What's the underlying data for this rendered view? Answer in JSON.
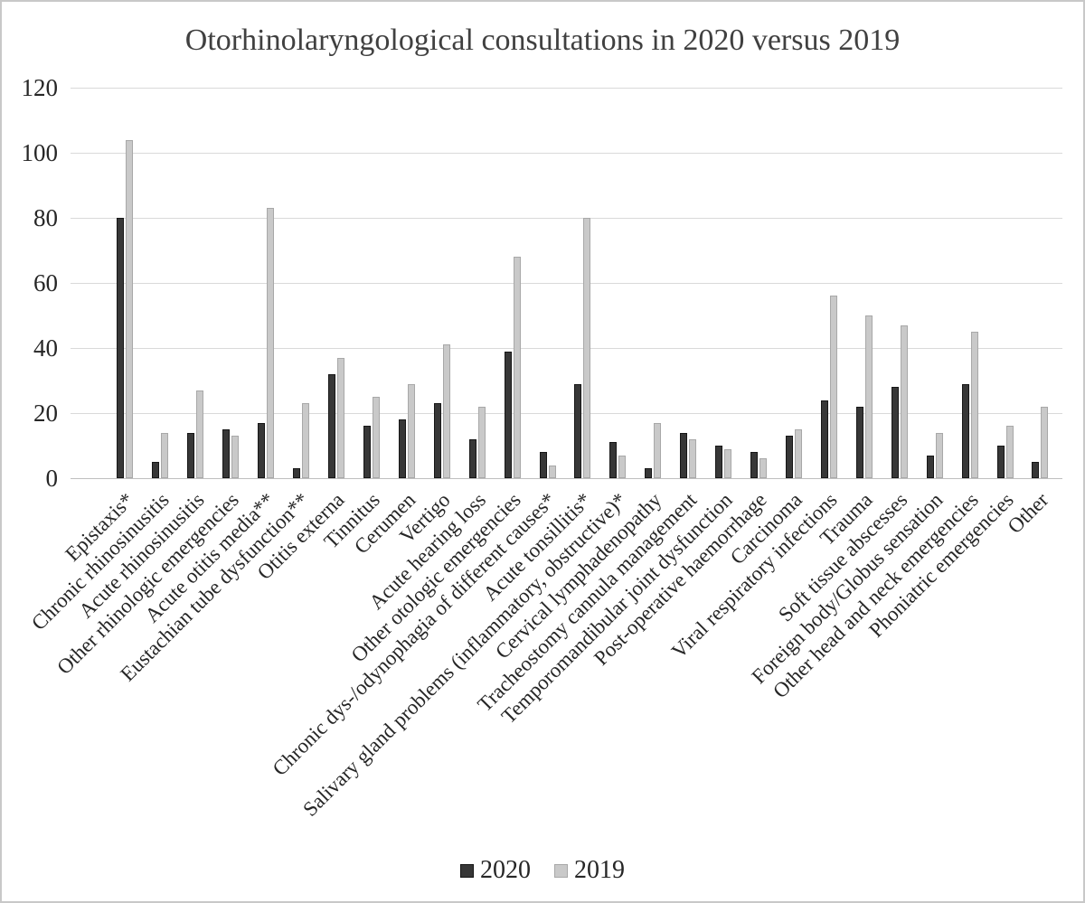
{
  "chart_data": {
    "type": "bar",
    "title": "Otorhinolaryngological consultations in 2020 versus 2019",
    "categories": [
      "Epistaxis*",
      "Chronic rhinosinusitis",
      "Acute rhinosinusitis",
      "Other rhinologic emergencies",
      "Acute otitis media**",
      "Eustachian tube dysfunction**",
      "Otitis externa",
      "Tinnitus",
      "Cerumen",
      "Vertigo",
      "Acute hearing loss",
      "Other otologic emergencies",
      "Chronic dys-/odynophagia of different causes*",
      "Acute tonsillitis*",
      "Salivary gland problems (inflammatory, obstructive)*",
      "Cervical lymphadenopathy",
      "Tracheostomy cannula management",
      "Temporomandibular joint dysfunction",
      "Post-operative haemorrhage",
      "Carcinoma",
      "Viral respiratory infections",
      "Trauma",
      "Soft tissue abscesses",
      "Foreign body/Globus sensation",
      "Other head and neck emergencies",
      "Phoniatric emergencies",
      "Other"
    ],
    "series": [
      {
        "name": "2020",
        "color": "#373737",
        "border_color": "#161616",
        "values": [
          80,
          5,
          14,
          15,
          17,
          3,
          32,
          16,
          18,
          23,
          12,
          39,
          8,
          29,
          11,
          3,
          14,
          10,
          8,
          13,
          24,
          22,
          28,
          7,
          29,
          10,
          5
        ]
      },
      {
        "name": "2019",
        "color": "#c9c9c9",
        "border_color": "#a8a8a8",
        "values": [
          104,
          14,
          27,
          13,
          83,
          23,
          37,
          25,
          29,
          41,
          22,
          68,
          4,
          80,
          7,
          17,
          12,
          9,
          6,
          15,
          56,
          50,
          47,
          14,
          45,
          16,
          22
        ]
      }
    ],
    "xlabel": "",
    "ylabel": "",
    "ylim": [
      0,
      120
    ],
    "yticks": [
      0,
      20,
      40,
      60,
      80,
      100,
      120
    ],
    "grid": "horizontal",
    "gridline_color": "#d9d9d9",
    "axis_line_color": "#bfbfbf",
    "legend_position": "bottom"
  }
}
